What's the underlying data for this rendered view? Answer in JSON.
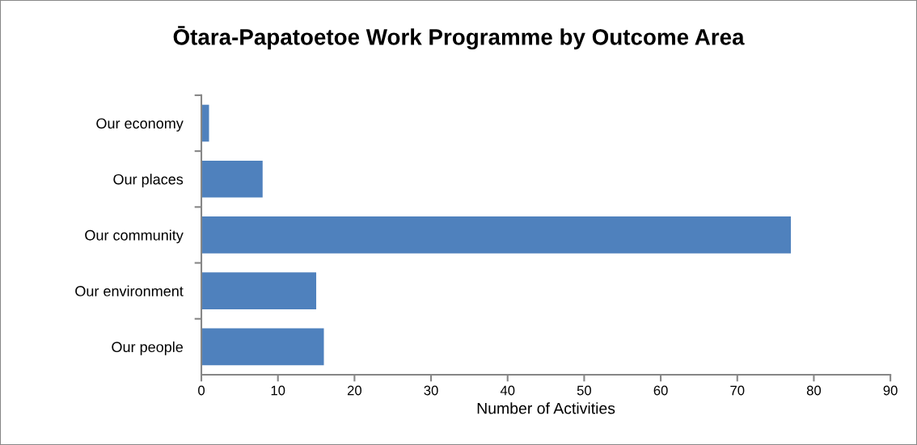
{
  "chart_data": {
    "type": "bar",
    "orientation": "horizontal",
    "title": "Ōtara-Papatoetoe Work Programme by Outcome Area",
    "xlabel": "Number of Activities",
    "categories": [
      "Our economy",
      "Our places",
      "Our community",
      "Our environment",
      "Our people"
    ],
    "values": [
      1,
      8,
      77,
      15,
      16
    ],
    "color": "#4f81bd",
    "xlim": [
      0,
      90
    ],
    "xticks": [
      0,
      10,
      20,
      30,
      40,
      50,
      60,
      70,
      80,
      90
    ],
    "grid": false,
    "legend": false
  }
}
